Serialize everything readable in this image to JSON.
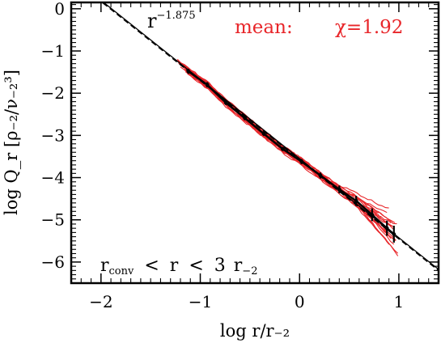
{
  "chart_data": {
    "type": "line",
    "xlabel": "log r/r₋₂",
    "ylabel": "log Q_r [ρ₋₂/ν₋₂³]",
    "xlim": [
      -2.3,
      1.4
    ],
    "ylim": [
      -6.5,
      0.15
    ],
    "x_ticks": [
      "−2",
      "−1",
      "0",
      "1"
    ],
    "x_tick_values": [
      -2,
      -1,
      0,
      1
    ],
    "y_ticks": [
      "0",
      "−1",
      "−2",
      "−3",
      "−4",
      "−5",
      "−6"
    ],
    "y_tick_values": [
      0,
      -1,
      -2,
      -3,
      -4,
      -5,
      -6
    ],
    "grid": false,
    "colors": {
      "mean_line": "#000000",
      "profiles": "#e8262a",
      "fit_line": "#000000"
    },
    "power_law": {
      "label": "r",
      "exponent_label": "−1.875",
      "slope": -1.875,
      "intercept": -3.57,
      "x_range": [
        -1.98,
        1.4
      ]
    },
    "mean_label": "mean:",
    "chi_label": "χ=1.92",
    "range_label": {
      "r1": "r",
      "r1_sub": "conv",
      "lt1": "<",
      "r2": "r",
      "lt2": "<",
      "num": "3",
      "r3": "r",
      "r3_sub": "−2"
    },
    "mean_profile": {
      "x": [
        -1.12,
        -0.93,
        -0.74,
        -0.55,
        -0.36,
        -0.17,
        0.02,
        0.21,
        0.4,
        0.57,
        0.73,
        0.88,
        0.95
      ],
      "y": [
        -1.48,
        -1.8,
        -2.23,
        -2.59,
        -2.96,
        -3.32,
        -3.62,
        -3.95,
        -4.28,
        -4.55,
        -4.88,
        -5.2,
        -5.34
      ],
      "err": [
        0.06,
        0.06,
        0.05,
        0.05,
        0.05,
        0.05,
        0.06,
        0.07,
        0.09,
        0.12,
        0.15,
        0.18,
        0.2
      ]
    },
    "series": [
      {
        "x_range": [
          -1.25,
          0.95
        ],
        "offset": 0.03,
        "tail": 0.12
      },
      {
        "x_range": [
          -1.2,
          0.92
        ],
        "offset": -0.04,
        "tail": -0.1
      },
      {
        "x_range": [
          -1.18,
          0.98
        ],
        "offset": 0.06,
        "tail": 0.22
      },
      {
        "x_range": [
          -1.15,
          0.9
        ],
        "offset": -0.07,
        "tail": -0.25
      },
      {
        "x_range": [
          -1.22,
          0.96
        ],
        "offset": 0.01,
        "tail": 0.3
      },
      {
        "x_range": [
          -1.1,
          0.99
        ],
        "offset": -0.02,
        "tail": -0.38
      },
      {
        "x_range": [
          -1.17,
          0.93
        ],
        "offset": 0.08,
        "tail": 0.05
      },
      {
        "x_range": [
          -1.13,
          0.97
        ],
        "offset": -0.09,
        "tail": -0.02
      },
      {
        "x_range": [
          -1.24,
          0.91
        ],
        "offset": 0.04,
        "tail": -0.18
      },
      {
        "x_range": [
          -1.08,
          0.94
        ],
        "offset": -0.05,
        "tail": 0.18
      },
      {
        "x_range": [
          -1.19,
          0.99
        ],
        "offset": 0.02,
        "tail": -0.45
      },
      {
        "x_range": [
          -1.16,
          0.88
        ],
        "offset": -0.01,
        "tail": 0.38
      },
      {
        "x_range": [
          -1.21,
          0.95
        ],
        "offset": 0.05,
        "tail": -0.3
      },
      {
        "x_range": [
          -1.11,
          0.92
        ],
        "offset": -0.06,
        "tail": 0.27
      },
      {
        "x_range": [
          -1.14,
          0.97
        ],
        "offset": 0.0,
        "tail": -0.08
      },
      {
        "x_range": [
          -1.23,
          0.9
        ],
        "offset": 0.07,
        "tail": 0.45
      }
    ]
  }
}
